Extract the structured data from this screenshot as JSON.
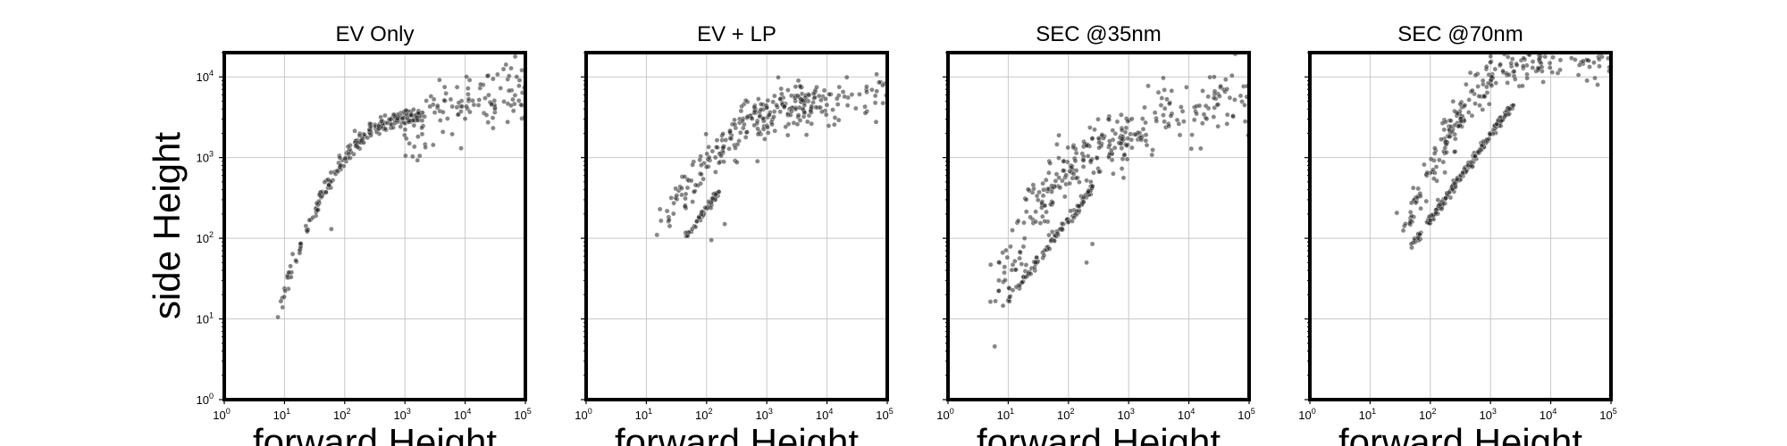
{
  "figure": {
    "ylabel": "side Height",
    "xlabel": "forward Height"
  },
  "chart_data": [
    {
      "type": "scatter",
      "title": "EV Only",
      "xlabel": "forward Height",
      "ylabel": "side Height",
      "xscale": "log",
      "yscale": "log",
      "xlim": [
        1,
        100000
      ],
      "ylim": [
        1,
        20000
      ],
      "grid": true,
      "color": "#222222",
      "segments": [
        {
          "x0": 8,
          "y0": 13,
          "x1": 2000,
          "y1": 3200,
          "curve": 0.5,
          "n": 230,
          "spread": 0.05
        },
        {
          "x0": 800,
          "y0": 2000,
          "x1": 90000,
          "y1": 6500,
          "curve": 0.3,
          "n": 120,
          "spread": 0.2
        }
      ],
      "points": [
        [
          60,
          130
        ]
      ]
    },
    {
      "type": "scatter",
      "title": "EV + LP",
      "xlabel": "forward Height",
      "ylabel": "side Height",
      "xscale": "log",
      "yscale": "log",
      "xlim": [
        1,
        100000
      ],
      "ylim": [
        1,
        20000
      ],
      "grid": true,
      "color": "#222222",
      "segments": [
        {
          "x0": 20,
          "y0": 150,
          "x1": 5000,
          "y1": 5000,
          "curve": 0.35,
          "n": 220,
          "spread": 0.14
        },
        {
          "x0": 40,
          "y0": 90,
          "x1": 160,
          "y1": 380,
          "curve": 0,
          "n": 50,
          "spread": 0.025
        },
        {
          "x0": 2000,
          "y0": 3500,
          "x1": 90000,
          "y1": 6000,
          "curve": 0.2,
          "n": 70,
          "spread": 0.15
        }
      ],
      "points": [
        [
          15,
          110
        ],
        [
          120,
          95
        ],
        [
          200,
          150
        ],
        [
          700,
          900
        ]
      ]
    },
    {
      "type": "scatter",
      "title": "SEC @35nm",
      "xlabel": "forward Height",
      "ylabel": "side Height",
      "xscale": "log",
      "yscale": "log",
      "xlim": [
        1,
        100000
      ],
      "ylim": [
        1,
        20000
      ],
      "grid": true,
      "color": "#222222",
      "segments": [
        {
          "x0": 6,
          "y0": 20,
          "x1": 1000,
          "y1": 1700,
          "curve": 0.35,
          "n": 200,
          "spread": 0.2
        },
        {
          "x0": 8,
          "y0": 14,
          "x1": 250,
          "y1": 420,
          "curve": 0,
          "n": 110,
          "spread": 0.03
        },
        {
          "x0": 700,
          "y0": 1500,
          "x1": 90000,
          "y1": 5000,
          "curve": 0.2,
          "n": 110,
          "spread": 0.2
        }
      ],
      "points": [
        [
          250,
          85
        ],
        [
          200,
          50
        ],
        [
          7,
          30
        ]
      ]
    },
    {
      "type": "scatter",
      "title": "SEC @70nm",
      "xlabel": "forward Height",
      "ylabel": "side Height",
      "xscale": "log",
      "yscale": "log",
      "xlim": [
        1,
        100000
      ],
      "ylim": [
        1,
        20000
      ],
      "grid": true,
      "color": "#222222",
      "segments": [
        {
          "x0": 35,
          "y0": 110,
          "x1": 8000,
          "y1": 18000,
          "curve": 0.35,
          "n": 220,
          "spread": 0.13
        },
        {
          "x0": 45,
          "y0": 75,
          "x1": 2500,
          "y1": 5000,
          "curve": 0,
          "n": 180,
          "spread": 0.03
        },
        {
          "x0": 5000,
          "y0": 12000,
          "x1": 90000,
          "y1": 16000,
          "curve": 0.1,
          "n": 30,
          "spread": 0.1
        }
      ],
      "points": [
        [
          40000,
          9000
        ],
        [
          60000,
          8000
        ],
        [
          30000,
          14000
        ],
        [
          90000,
          17000
        ]
      ]
    }
  ]
}
